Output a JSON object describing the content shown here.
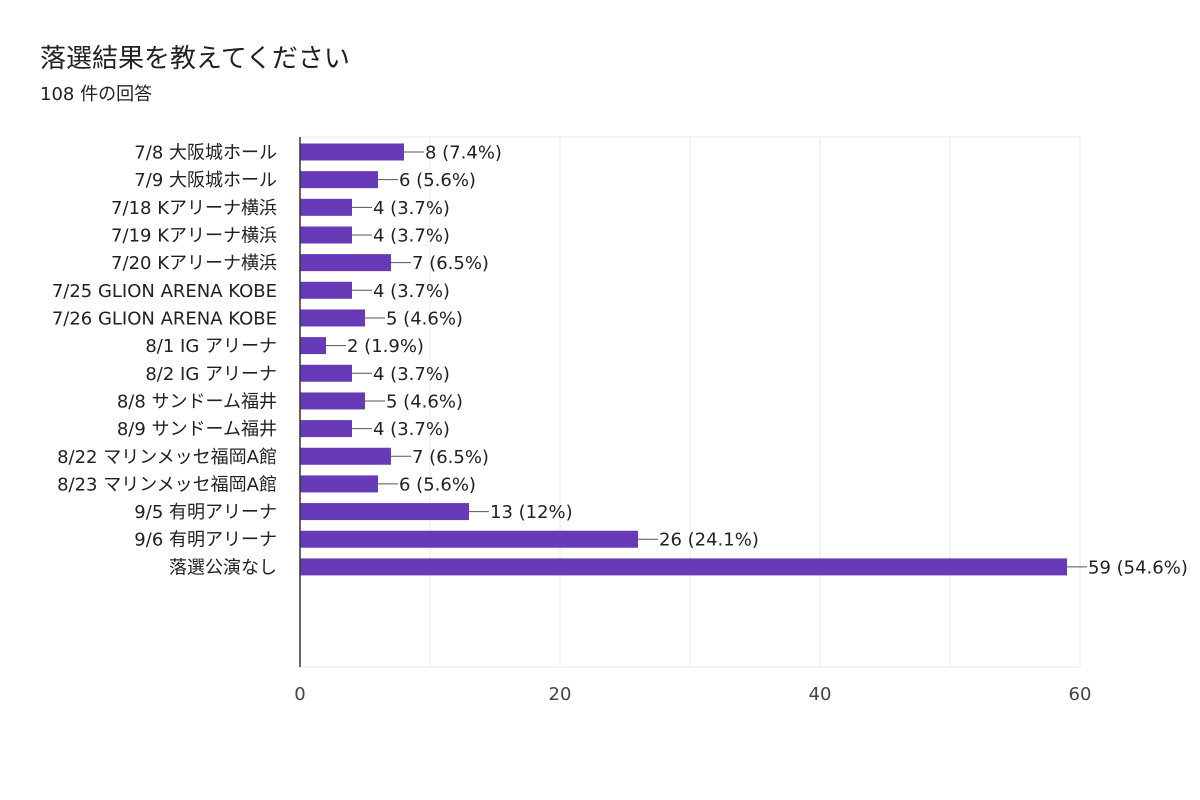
{
  "header": {
    "title": "落選結果を教えてください",
    "responses": "108 件の回答"
  },
  "colors": {
    "bar": "#673ab7",
    "grid": "#e8e8e8",
    "axis": "#333333"
  },
  "chart_data": {
    "type": "bar",
    "orientation": "horizontal",
    "title": "",
    "xlabel": "",
    "ylabel": "",
    "xlim": [
      0,
      60
    ],
    "x_ticks": [
      0,
      20,
      40,
      60
    ],
    "grid": true,
    "categories": [
      "7/8 大阪城ホール",
      "7/9 大阪城ホール",
      "7/18 Kアリーナ横浜",
      "7/19 Kアリーナ横浜",
      "7/20 Kアリーナ横浜",
      "7/25 GLION ARENA KOBE",
      "7/26 GLION ARENA KOBE",
      "8/1 IG アリーナ",
      "8/2 IG アリーナ",
      "8/8 サンドーム福井",
      "8/9 サンドーム福井",
      "8/22 マリンメッセ福岡A館",
      "8/23 マリンメッセ福岡A館",
      "9/5 有明アリーナ",
      "9/6 有明アリーナ",
      "落選公演なし"
    ],
    "values": [
      8,
      6,
      4,
      4,
      7,
      4,
      5,
      2,
      4,
      5,
      4,
      7,
      6,
      13,
      26,
      59
    ],
    "data_labels": [
      "8 (7.4%)",
      "6 (5.6%)",
      "4 (3.7%)",
      "4 (3.7%)",
      "7 (6.5%)",
      "4 (3.7%)",
      "5 (4.6%)",
      "2 (1.9%)",
      "4 (3.7%)",
      "5 (4.6%)",
      "4 (3.7%)",
      "7 (6.5%)",
      "6 (5.6%)",
      "13 (12%)",
      "26 (24.1%)",
      "59 (54.6%)"
    ]
  }
}
